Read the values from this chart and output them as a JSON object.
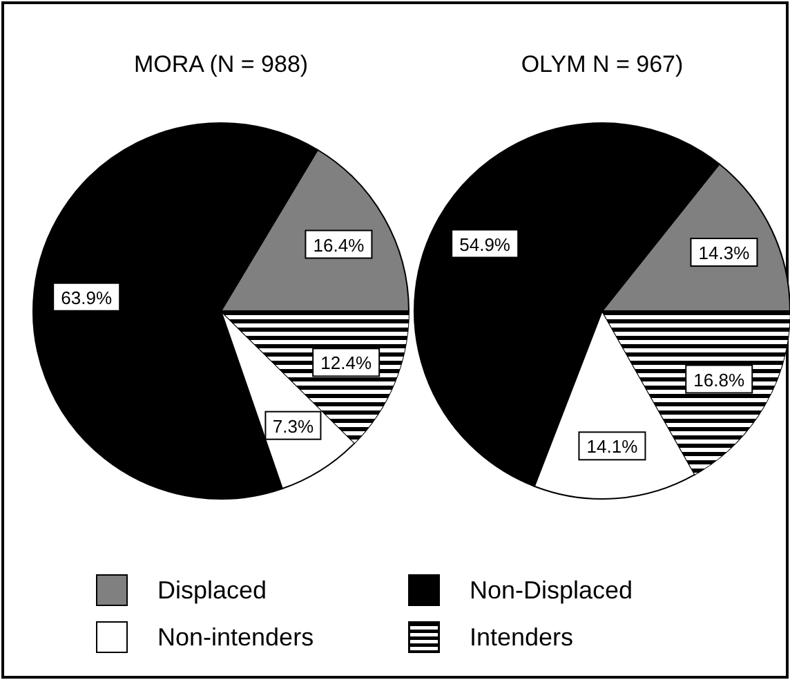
{
  "chart_data": [
    {
      "type": "pie",
      "title": "MORA (N = 988)",
      "categories": [
        "Displaced",
        "Non-Displaced",
        "Non-intenders",
        "Intenders"
      ],
      "values": [
        16.4,
        63.9,
        7.3,
        12.4
      ],
      "colors": [
        "#808080",
        "#000000",
        "#ffffff",
        "#000000"
      ],
      "value_labels": [
        "16.4%",
        "63.9%",
        "7.3%",
        "12.4%"
      ],
      "legend": "bottom"
    },
    {
      "type": "pie",
      "title": "OLYM N = 967)",
      "categories": [
        null,
        null,
        null,
        null
      ],
      "values": [
        14.3,
        54.9,
        14.1,
        16.8
      ],
      "colors": [
        "#808080",
        "#000000",
        "#ffffff",
        "#000000"
      ],
      "value_labels": [
        "14.3%",
        "54.9%",
        "14.1%",
        "16.8%"
      ]
    }
  ]
}
